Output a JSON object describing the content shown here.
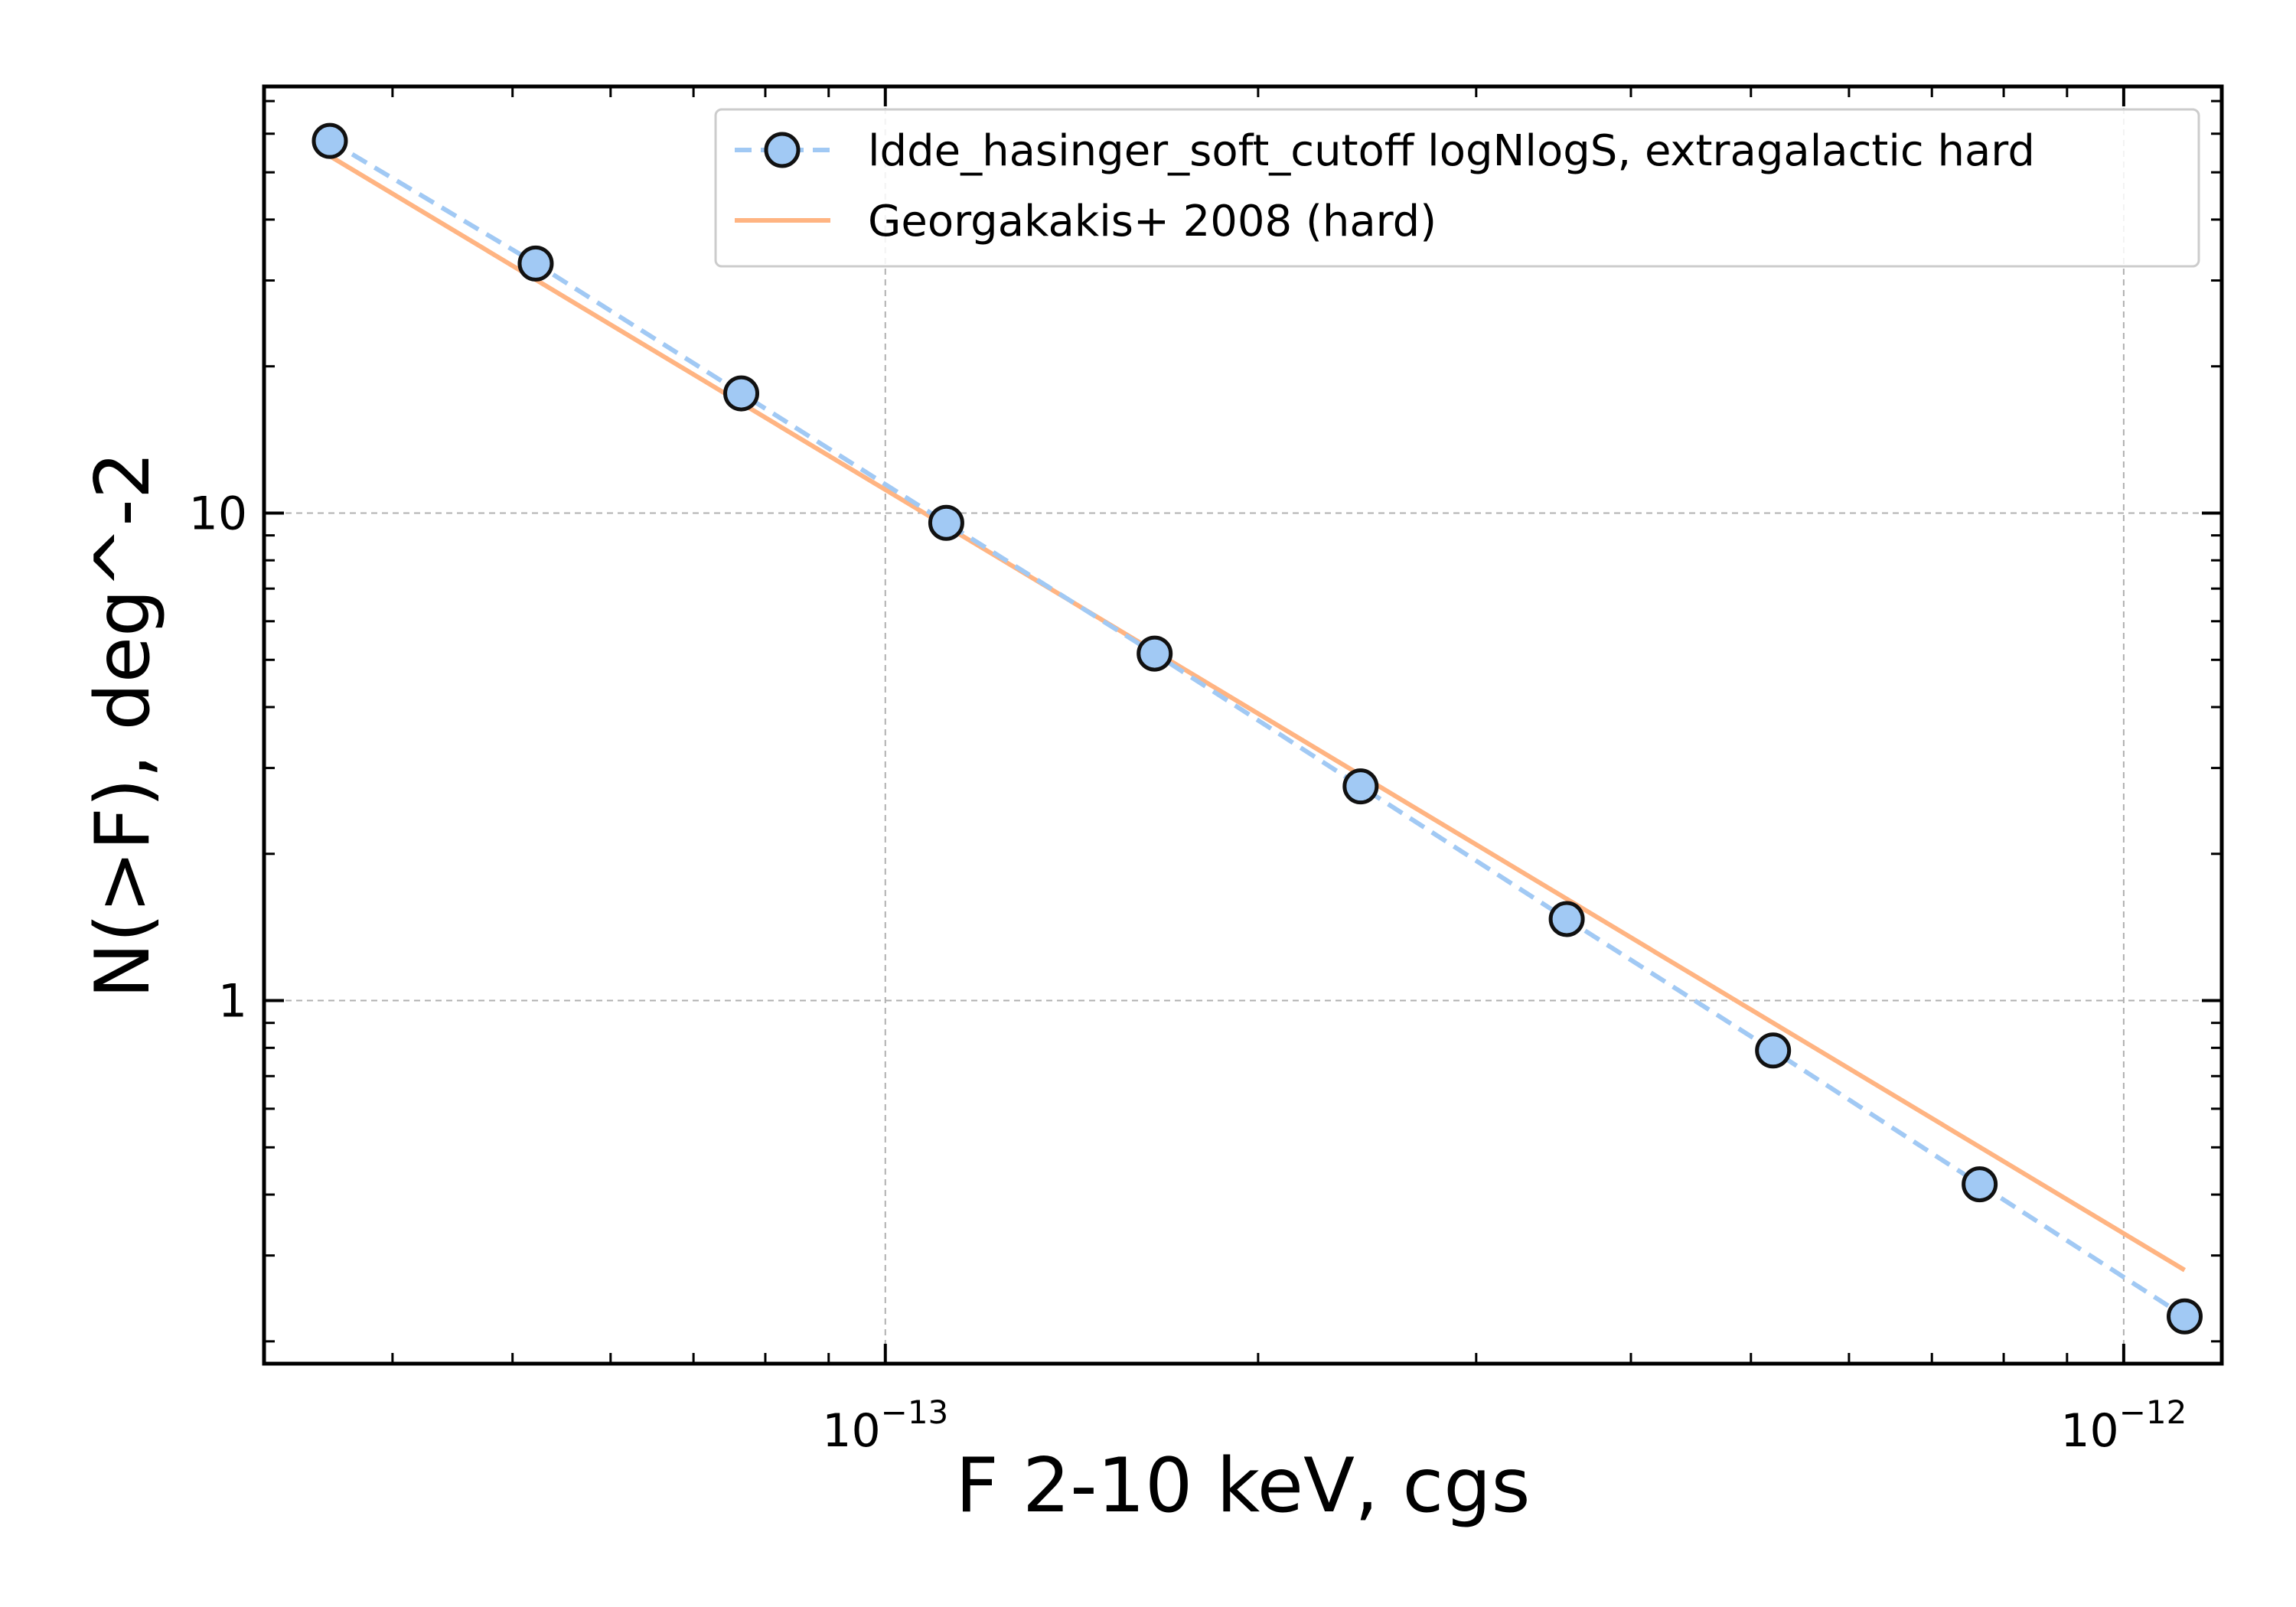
{
  "chart_data": {
    "type": "line",
    "xlabel": "F 2-10 keV, cgs",
    "ylabel": "N(>F), deg^-2",
    "xscale": "log",
    "yscale": "log",
    "xlim": [
      3.15e-14,
      1.2e-12
    ],
    "ylim": [
      0.18,
      75
    ],
    "grid": true,
    "legend_placement": "top-right",
    "x_tick_labels": [
      {
        "value": 1e-13,
        "base": "10",
        "exp": "−13"
      },
      {
        "value": 1e-12,
        "base": "10",
        "exp": "−12"
      }
    ],
    "y_tick_labels": [
      {
        "value": 10,
        "label": "10"
      },
      {
        "value": 1,
        "label": "1"
      }
    ],
    "series": [
      {
        "name": "ldde_hasinger_soft_cutoff logNlogS, extragalactic hard",
        "color": "#a1c9f4",
        "marker": "circle",
        "linestyle": "dashed",
        "x": [
          3.56e-14,
          5.22e-14,
          7.65e-14,
          1.12e-13,
          1.65e-13,
          2.42e-13,
          3.55e-13,
          5.21e-13,
          7.65e-13,
          1.12e-12
        ],
        "y": [
          58,
          32.5,
          17.6,
          9.55,
          5.15,
          2.75,
          1.47,
          0.79,
          0.42,
          0.225
        ]
      },
      {
        "name": "Georgakakis+ 2008 (hard)",
        "color": "#ffb482",
        "linestyle": "solid",
        "x": [
          3.56e-14,
          1.12e-12
        ],
        "y": [
          54,
          0.28
        ]
      }
    ]
  }
}
